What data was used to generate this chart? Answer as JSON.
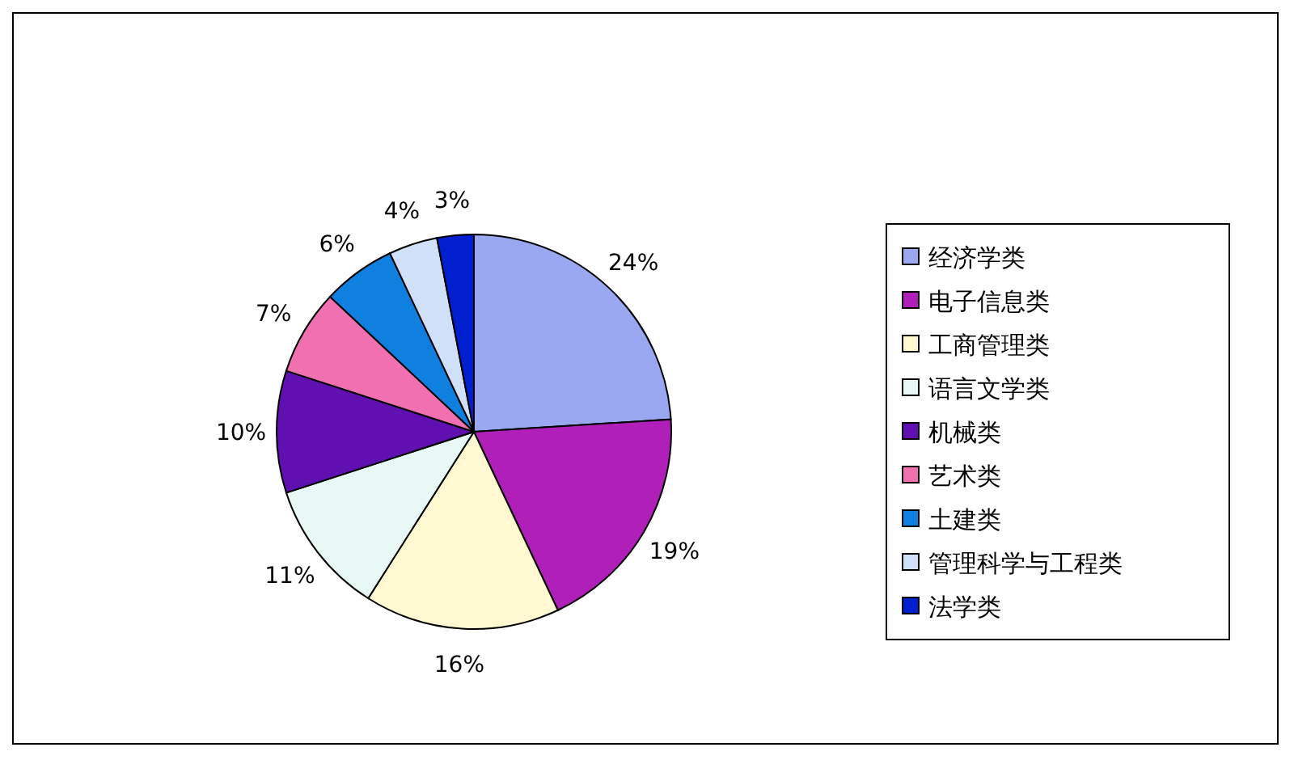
{
  "chart_data": {
    "type": "pie",
    "categories": [
      "经济学类",
      "电子信息类",
      "工商管理类",
      "语言文学类",
      "机械类",
      "艺术类",
      "土建类",
      "管理科学与工程类",
      "法学类"
    ],
    "values": [
      24,
      19,
      16,
      11,
      10,
      7,
      6,
      4,
      3
    ],
    "value_labels": [
      "24%",
      "19%",
      "16%",
      "11%",
      "10%",
      "7%",
      "6%",
      "4%",
      "3%"
    ],
    "colors": [
      "#99a8f0",
      "#b020b8",
      "#fff8d0",
      "#e8f8f4",
      "#6010b0",
      "#f070b0",
      "#1080e0",
      "#d0e0f8",
      "#0020d0"
    ],
    "legend": "right"
  }
}
